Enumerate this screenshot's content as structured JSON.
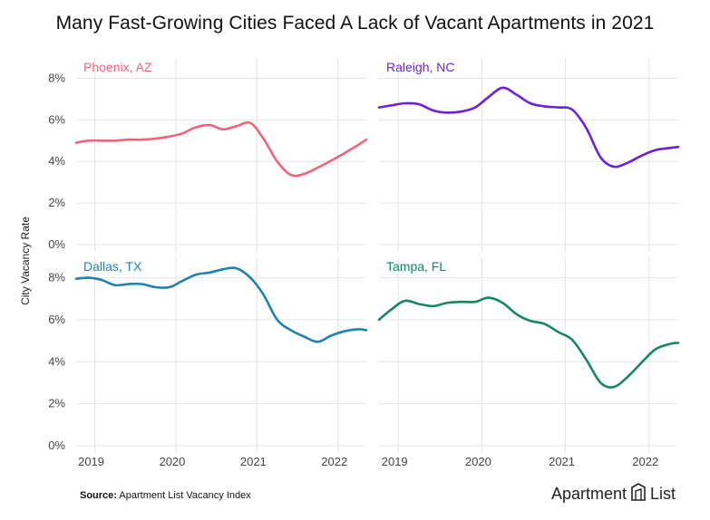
{
  "title": "Many Fast-Growing Cities Faced A Lack of Vacant Apartments in 2021",
  "ylabel": "City Vacancy Rate",
  "source_label": "Source:",
  "source_text": "Apartment List Vacancy Index",
  "logo": {
    "left": "Apartment",
    "right": "List",
    "icon": "apartment-list-logo-icon"
  },
  "chart_data": [
    {
      "type": "line",
      "title": "Phoenix, AZ",
      "color": "#f0637b",
      "x_ticks": [
        "2019",
        "2020",
        "2021",
        "2022"
      ],
      "y_ticks": [
        "0%",
        "2%",
        "4%",
        "6%",
        "8%"
      ],
      "ylim": [
        0,
        8.5
      ],
      "xlim": [
        2018.77,
        2022.35
      ],
      "grid": "horizontal and vertical",
      "x": [
        2018.77,
        2018.92,
        2019.08,
        2019.25,
        2019.42,
        2019.58,
        2019.75,
        2019.92,
        2020.08,
        2020.25,
        2020.42,
        2020.58,
        2020.75,
        2020.92,
        2021.08,
        2021.25,
        2021.42,
        2021.58,
        2021.75,
        2021.92,
        2022.08,
        2022.25,
        2022.35
      ],
      "y": [
        4.9,
        5.0,
        5.0,
        5.0,
        5.05,
        5.05,
        5.1,
        5.2,
        5.35,
        5.65,
        5.75,
        5.55,
        5.7,
        5.85,
        5.1,
        4.0,
        3.35,
        3.4,
        3.7,
        4.05,
        4.4,
        4.8,
        5.05
      ]
    },
    {
      "type": "line",
      "title": "Raleigh, NC",
      "color": "#6b21d9",
      "x_ticks": [
        "2019",
        "2020",
        "2021",
        "2022"
      ],
      "y_ticks": [
        "0%",
        "2%",
        "4%",
        "6%",
        "8%"
      ],
      "ylim": [
        0,
        8.5
      ],
      "xlim": [
        2018.77,
        2022.35
      ],
      "grid": "horizontal and vertical",
      "x": [
        2018.77,
        2018.92,
        2019.08,
        2019.25,
        2019.42,
        2019.58,
        2019.75,
        2019.92,
        2020.08,
        2020.25,
        2020.42,
        2020.58,
        2020.75,
        2020.92,
        2021.08,
        2021.25,
        2021.42,
        2021.58,
        2021.75,
        2021.92,
        2022.08,
        2022.25,
        2022.35
      ],
      "y": [
        6.6,
        6.7,
        6.8,
        6.75,
        6.45,
        6.35,
        6.4,
        6.6,
        7.1,
        7.55,
        7.2,
        6.8,
        6.65,
        6.6,
        6.5,
        5.6,
        4.2,
        3.75,
        3.95,
        4.3,
        4.55,
        4.65,
        4.7
      ]
    },
    {
      "type": "line",
      "title": "Dallas, TX",
      "color": "#1f82ad",
      "x_ticks": [
        "2019",
        "2020",
        "2021",
        "2022"
      ],
      "y_ticks": [
        "0%",
        "2%",
        "4%",
        "6%",
        "8%"
      ],
      "ylim": [
        0,
        8.5
      ],
      "xlim": [
        2018.77,
        2022.35
      ],
      "grid": "horizontal and vertical",
      "x": [
        2018.77,
        2018.92,
        2019.08,
        2019.25,
        2019.42,
        2019.58,
        2019.75,
        2019.92,
        2020.08,
        2020.25,
        2020.42,
        2020.58,
        2020.75,
        2020.92,
        2021.08,
        2021.25,
        2021.42,
        2021.58,
        2021.75,
        2021.92,
        2022.08,
        2022.25,
        2022.35
      ],
      "y": [
        7.95,
        8.0,
        7.9,
        7.65,
        7.7,
        7.7,
        7.55,
        7.55,
        7.85,
        8.15,
        8.25,
        8.4,
        8.45,
        8.0,
        7.2,
        6.0,
        5.5,
        5.2,
        4.95,
        5.25,
        5.45,
        5.55,
        5.5
      ]
    },
    {
      "type": "line",
      "title": "Tampa, FL",
      "color": "#14875e",
      "x_ticks": [
        "2019",
        "2020",
        "2021",
        "2022"
      ],
      "y_ticks": [
        "0%",
        "2%",
        "4%",
        "6%",
        "8%"
      ],
      "ylim": [
        0,
        8.5
      ],
      "xlim": [
        2018.77,
        2022.35
      ],
      "grid": "horizontal and vertical",
      "x": [
        2018.77,
        2018.92,
        2019.08,
        2019.25,
        2019.42,
        2019.58,
        2019.75,
        2019.92,
        2020.08,
        2020.25,
        2020.42,
        2020.58,
        2020.75,
        2020.92,
        2021.08,
        2021.25,
        2021.42,
        2021.58,
        2021.75,
        2021.92,
        2022.08,
        2022.25,
        2022.35
      ],
      "y": [
        6.0,
        6.5,
        6.9,
        6.75,
        6.65,
        6.8,
        6.85,
        6.85,
        7.05,
        6.8,
        6.25,
        5.95,
        5.8,
        5.4,
        5.05,
        4.1,
        3.0,
        2.8,
        3.3,
        4.0,
        4.6,
        4.85,
        4.9
      ]
    }
  ]
}
